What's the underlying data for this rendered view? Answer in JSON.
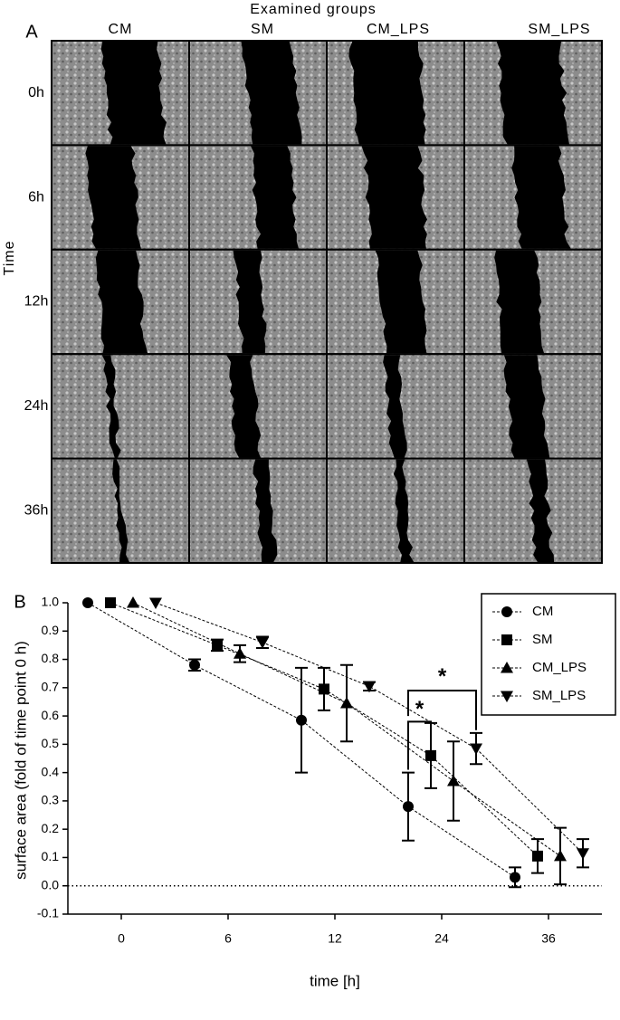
{
  "panel_a": {
    "label": "A",
    "title": "Examined groups",
    "columns": [
      "CM",
      "SM",
      "CM_LPS",
      "SM_LPS"
    ],
    "axis_label": "Time",
    "rows": [
      "0h",
      "6h",
      "12h",
      "24h",
      "36h"
    ]
  },
  "chart_data": {
    "type": "line",
    "panel_label": "B",
    "x_label": "time [h]",
    "y_label": "surface area (fold of time point 0 h)",
    "categories": [
      "0",
      "6",
      "12",
      "24",
      "36"
    ],
    "series": [
      {
        "name": "CM",
        "color": "#000000",
        "marker": "circle",
        "values": [
          1.0,
          0.78,
          0.585,
          0.28,
          0.03
        ],
        "errors": [
          null,
          0.02,
          0.185,
          0.12,
          0.035
        ]
      },
      {
        "name": "SM",
        "color": "#000000",
        "marker": "square",
        "values": [
          1.0,
          0.85,
          0.695,
          0.46,
          0.105
        ],
        "errors": [
          null,
          0.02,
          0.075,
          0.115,
          0.06
        ]
      },
      {
        "name": "CM_LPS",
        "color": "#000000",
        "marker": "triangle-up",
        "values": [
          1.0,
          0.82,
          0.645,
          0.37,
          0.105
        ],
        "errors": [
          null,
          0.03,
          0.135,
          0.14,
          0.1
        ]
      },
      {
        "name": "SM_LPS",
        "color": "#000000",
        "marker": "triangle-down",
        "values": [
          1.0,
          0.86,
          0.705,
          0.485,
          0.115
        ],
        "errors": [
          null,
          0.02,
          0.015,
          0.055,
          0.05
        ]
      }
    ],
    "ylim": [
      -0.1,
      1.0
    ],
    "yticks": [
      {
        "value": 1,
        "label": "1.0"
      },
      0.9,
      0.8,
      0.7,
      0.6,
      0.5,
      0.4,
      0.3,
      0.2,
      0.1,
      {
        "value": 0,
        "label": "0.0"
      },
      -0.1
    ],
    "reference_line": 0,
    "legend": "top-right",
    "annotations": [
      {
        "text": "*"
      },
      {
        "text": "*"
      }
    ]
  }
}
